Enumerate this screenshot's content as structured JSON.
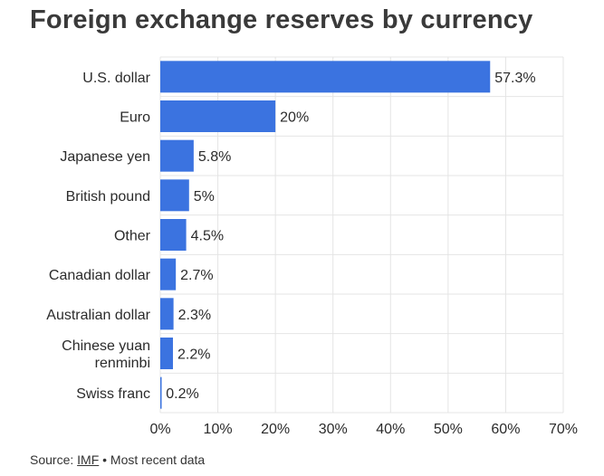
{
  "title": "Foreign exchange reserves by currency",
  "source": {
    "prefix": "Source:",
    "link": "IMF",
    "suffix": "• Most recent data"
  },
  "colors": {
    "bar": "#3b73e0",
    "grid": "#e4e4e4",
    "text": "#2b2b2b"
  },
  "chart_data": {
    "type": "bar",
    "orientation": "horizontal",
    "categories": [
      "U.S. dollar",
      "Euro",
      "Japanese yen",
      "British pound",
      "Other",
      "Canadian dollar",
      "Australian dollar",
      "Chinese yuan renminbi",
      "Swiss franc"
    ],
    "category_lines": [
      [
        "U.S. dollar"
      ],
      [
        "Euro"
      ],
      [
        "Japanese yen"
      ],
      [
        "British pound"
      ],
      [
        "Other"
      ],
      [
        "Canadian dollar"
      ],
      [
        "Australian dollar"
      ],
      [
        "Chinese yuan",
        "renminbi"
      ],
      [
        "Swiss franc"
      ]
    ],
    "values": [
      57.3,
      20,
      5.8,
      5,
      4.5,
      2.7,
      2.3,
      2.2,
      0.2
    ],
    "value_labels": [
      "57.3%",
      "20%",
      "5.8%",
      "5%",
      "4.5%",
      "2.7%",
      "2.3%",
      "2.2%",
      "0.2%"
    ],
    "xlim": [
      0,
      70
    ],
    "xticks": [
      0,
      10,
      20,
      30,
      40,
      50,
      60,
      70
    ],
    "xtick_labels": [
      "0%",
      "10%",
      "20%",
      "30%",
      "40%",
      "50%",
      "60%",
      "70%"
    ],
    "grid": true
  }
}
